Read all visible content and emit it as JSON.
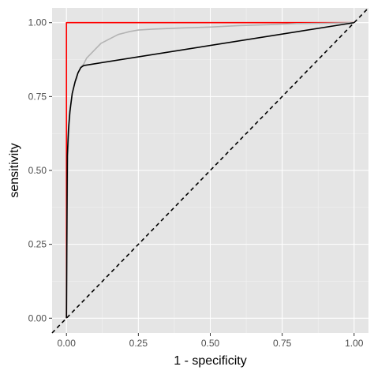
{
  "chart_data": {
    "type": "line",
    "xlabel": "1 - specificity",
    "ylabel": "sensitivity",
    "xlim": [
      -0.05,
      1.05
    ],
    "ylim": [
      -0.05,
      1.05
    ],
    "x_ticks": [
      "0.00",
      "0.25",
      "0.50",
      "0.75",
      "1.00"
    ],
    "y_ticks": [
      "0.00",
      "0.25",
      "0.50",
      "0.75",
      "1.00"
    ],
    "grid": true,
    "panel_background": "#e5e5e5",
    "series": [
      {
        "color": "#ff0000",
        "line_style": "solid",
        "x": [
          0.0,
          0.0,
          0.0,
          1.0
        ],
        "y": [
          0.0,
          0.5,
          1.0,
          1.0
        ]
      },
      {
        "color": "#b3b3b3",
        "line_style": "solid",
        "x": [
          0.0,
          0.002,
          0.005,
          0.01,
          0.015,
          0.02,
          0.025,
          0.03,
          0.035,
          0.04,
          0.045,
          0.05,
          0.06,
          0.07,
          0.08,
          0.09,
          0.1,
          0.11,
          0.12,
          0.14,
          0.16,
          0.18,
          0.2,
          0.22,
          0.25,
          0.3,
          0.35,
          0.4,
          0.5,
          0.6,
          0.7,
          0.75,
          0.8,
          0.9,
          1.0
        ],
        "y": [
          0.0,
          0.35,
          0.55,
          0.66,
          0.72,
          0.76,
          0.78,
          0.8,
          0.81,
          0.83,
          0.84,
          0.85,
          0.86,
          0.88,
          0.89,
          0.9,
          0.91,
          0.92,
          0.93,
          0.94,
          0.95,
          0.96,
          0.965,
          0.97,
          0.975,
          0.978,
          0.98,
          0.982,
          0.985,
          0.99,
          0.993,
          0.995,
          0.997,
          0.998,
          1.0
        ]
      },
      {
        "color": "#000000",
        "line_style": "solid",
        "x": [
          0.0,
          0.003,
          0.007,
          0.012,
          0.02,
          0.03,
          0.04,
          0.05,
          0.06,
          1.0
        ],
        "y": [
          0.0,
          0.55,
          0.64,
          0.7,
          0.76,
          0.8,
          0.83,
          0.848,
          0.855,
          1.0
        ]
      },
      {
        "color": "#000000",
        "line_style": "dashed",
        "x": [
          -0.05,
          1.05
        ],
        "y": [
          -0.05,
          1.05
        ]
      }
    ]
  }
}
